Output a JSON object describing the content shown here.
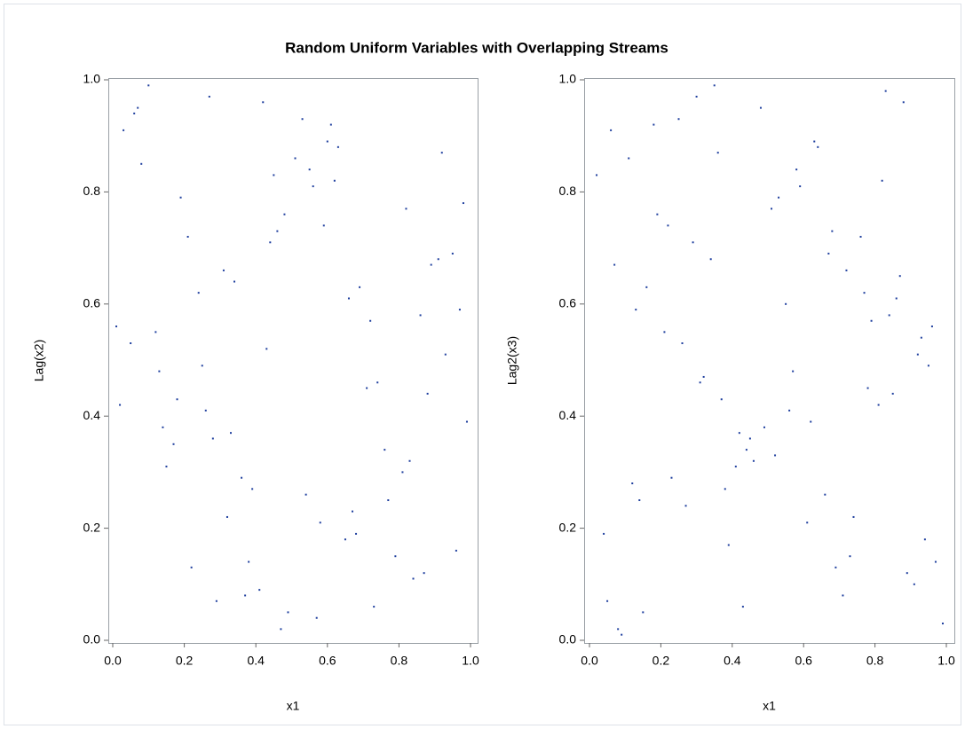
{
  "title": "Random Uniform Variables with Overlapping Streams",
  "chart_data": [
    {
      "type": "scatter",
      "xlabel": "x1",
      "ylabel": "Lag(x2)",
      "color": "#1f3f9e",
      "xlim": [
        0,
        1
      ],
      "ylim": [
        0,
        1
      ],
      "xticks": [
        {
          "value": 0,
          "label": "0.0"
        },
        {
          "value": 0.2,
          "label": "0.2"
        },
        {
          "value": 0.4,
          "label": "0.4"
        },
        {
          "value": 0.6,
          "label": "0.6"
        },
        {
          "value": 0.8,
          "label": "0.8"
        },
        {
          "value": 1,
          "label": "1.0"
        }
      ],
      "yticks": [
        {
          "value": 0,
          "label": "0.0"
        },
        {
          "value": 0.2,
          "label": "0.2"
        },
        {
          "value": 0.4,
          "label": "0.4"
        },
        {
          "value": 0.6,
          "label": "0.6"
        },
        {
          "value": 0.8,
          "label": "0.8"
        },
        {
          "value": 1,
          "label": "1.0"
        }
      ],
      "x": [
        0.12,
        0.87,
        0.45,
        0.33,
        0.91,
        0.06,
        0.58,
        0.74,
        0.21,
        0.49,
        0.97,
        0.15,
        0.63,
        0.38,
        0.82,
        0.02,
        0.69,
        0.27,
        0.54,
        0.93,
        0.41,
        0.08,
        0.76,
        0.31,
        0.65,
        0.19,
        0.88,
        0.47,
        0.03,
        0.72,
        0.36,
        0.59,
        0.84,
        0.24,
        0.51,
        0.99,
        0.13,
        0.67,
        0.42,
        0.79,
        0.05,
        0.56,
        0.29,
        0.95,
        0.17,
        0.61,
        0.39,
        0.86,
        0.22,
        0.71,
        0.48,
        0.1,
        0.83,
        0.34,
        0.57,
        0.92,
        0.26,
        0.68,
        0.44,
        0.01,
        0.77,
        0.53,
        0.14,
        0.89,
        0.37,
        0.62,
        0.25,
        0.96,
        0.46,
        0.81,
        0.07,
        0.66,
        0.32,
        0.55,
        0.18,
        0.73,
        0.43,
        0.98,
        0.28,
        0.6
      ],
      "values": [
        0.55,
        0.12,
        0.83,
        0.37,
        0.68,
        0.94,
        0.21,
        0.46,
        0.72,
        0.05,
        0.59,
        0.31,
        0.88,
        0.14,
        0.77,
        0.42,
        0.63,
        0.97,
        0.26,
        0.51,
        0.09,
        0.85,
        0.34,
        0.66,
        0.18,
        0.79,
        0.44,
        0.02,
        0.91,
        0.57,
        0.29,
        0.74,
        0.11,
        0.62,
        0.86,
        0.39,
        0.48,
        0.23,
        0.96,
        0.15,
        0.53,
        0.81,
        0.07,
        0.69,
        0.35,
        0.92,
        0.27,
        0.58,
        0.13,
        0.45,
        0.76,
        0.99,
        0.32,
        0.64,
        0.04,
        0.87,
        0.41,
        0.19,
        0.71,
        0.56,
        0.25,
        0.93,
        0.38,
        0.67,
        0.08,
        0.82,
        0.49,
        0.16,
        0.73,
        0.3,
        0.95,
        0.61,
        0.22,
        0.84,
        0.43,
        0.06,
        0.52,
        0.78,
        0.36,
        0.89
      ]
    },
    {
      "type": "scatter",
      "xlabel": "x1",
      "ylabel": "Lag2(x3)",
      "color": "#1f3f9e",
      "xlim": [
        0,
        1
      ],
      "ylim": [
        0,
        1
      ],
      "xticks": [
        {
          "value": 0,
          "label": "0.0"
        },
        {
          "value": 0.2,
          "label": "0.2"
        },
        {
          "value": 0.4,
          "label": "0.4"
        },
        {
          "value": 0.6,
          "label": "0.6"
        },
        {
          "value": 0.8,
          "label": "0.8"
        },
        {
          "value": 1,
          "label": "1.0"
        }
      ],
      "yticks": [
        {
          "value": 0,
          "label": "0.0"
        },
        {
          "value": 0.2,
          "label": "0.2"
        },
        {
          "value": 0.4,
          "label": "0.4"
        },
        {
          "value": 0.6,
          "label": "0.6"
        },
        {
          "value": 0.8,
          "label": "0.8"
        },
        {
          "value": 1,
          "label": "1.0"
        }
      ],
      "x": [
        0.55,
        0.12,
        0.83,
        0.37,
        0.68,
        0.94,
        0.21,
        0.46,
        0.72,
        0.05,
        0.59,
        0.31,
        0.88,
        0.14,
        0.77,
        0.42,
        0.63,
        0.97,
        0.26,
        0.51,
        0.09,
        0.85,
        0.34,
        0.66,
        0.18,
        0.79,
        0.44,
        0.02,
        0.91,
        0.57,
        0.29,
        0.74,
        0.11,
        0.62,
        0.86,
        0.39,
        0.48,
        0.23,
        0.96,
        0.15,
        0.53,
        0.81,
        0.07,
        0.69,
        0.35,
        0.92,
        0.27,
        0.58,
        0.13,
        0.45,
        0.76,
        0.99,
        0.32,
        0.64,
        0.04,
        0.87,
        0.41,
        0.19,
        0.71,
        0.56,
        0.25,
        0.93,
        0.38,
        0.67,
        0.08,
        0.82,
        0.49,
        0.16,
        0.73,
        0.3,
        0.95,
        0.61,
        0.22,
        0.84,
        0.43,
        0.06,
        0.52,
        0.78,
        0.36,
        0.89
      ],
      "values": [
        0.6,
        0.28,
        0.98,
        0.43,
        0.73,
        0.18,
        0.55,
        0.32,
        0.66,
        0.07,
        0.81,
        0.46,
        0.96,
        0.25,
        0.62,
        0.37,
        0.89,
        0.14,
        0.53,
        0.77,
        0.01,
        0.44,
        0.68,
        0.26,
        0.92,
        0.57,
        0.34,
        0.83,
        0.1,
        0.48,
        0.71,
        0.22,
        0.86,
        0.39,
        0.61,
        0.17,
        0.95,
        0.29,
        0.56,
        0.05,
        0.79,
        0.42,
        0.67,
        0.13,
        0.99,
        0.51,
        0.24,
        0.84,
        0.59,
        0.36,
        0.72,
        0.03,
        0.47,
        0.88,
        0.19,
        0.65,
        0.31,
        0.76,
        0.08,
        0.41,
        0.93,
        0.54,
        0.27,
        0.69,
        0.02,
        0.82,
        0.38,
        0.63,
        0.15,
        0.97,
        0.49,
        0.21,
        0.74,
        0.58,
        0.06,
        0.91,
        0.33,
        0.45,
        0.87,
        0.12
      ]
    }
  ]
}
